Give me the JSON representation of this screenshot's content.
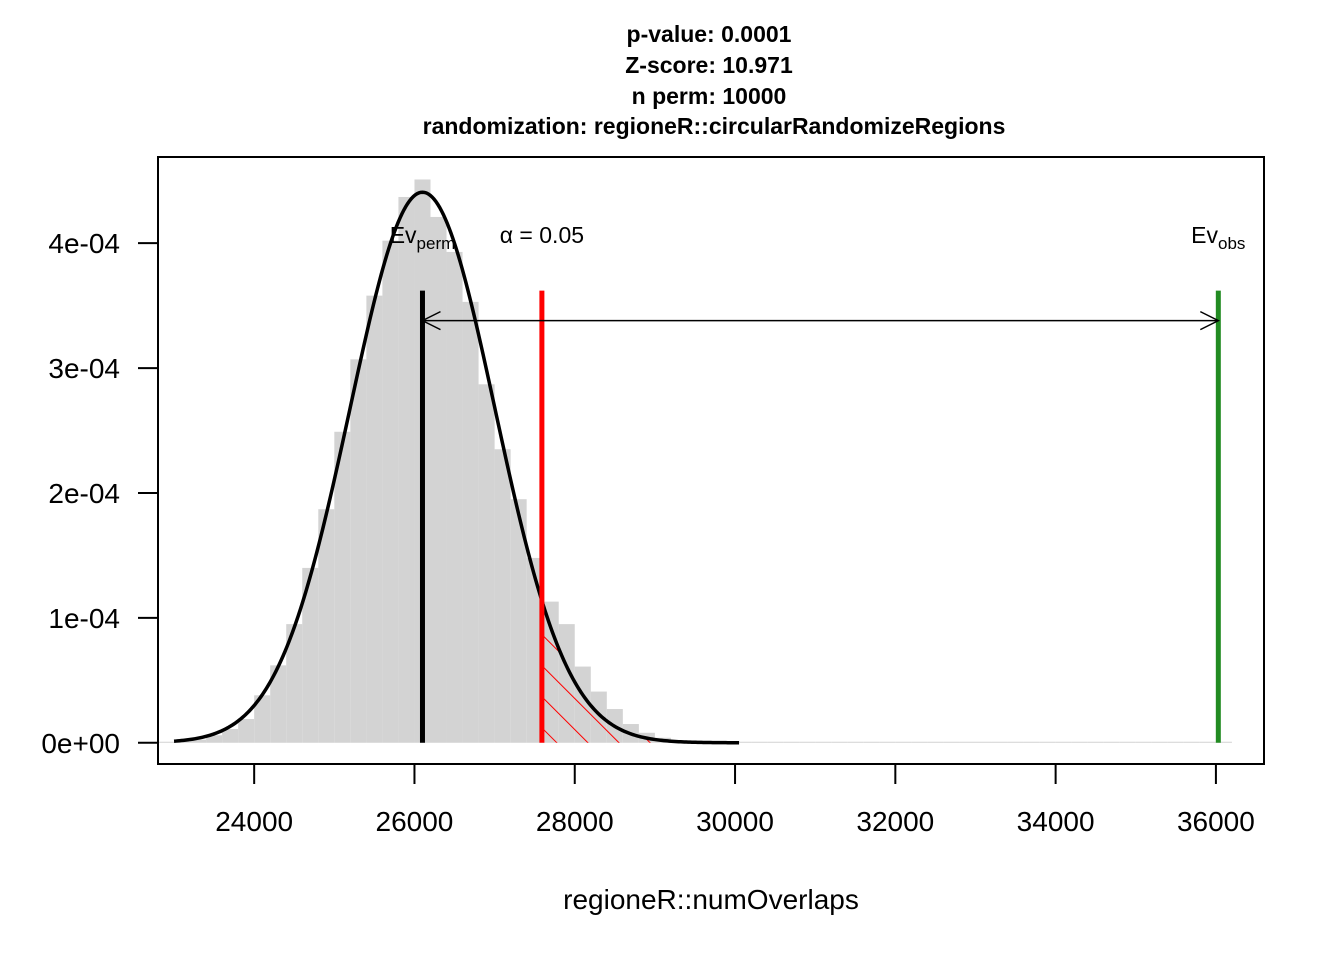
{
  "chart_data": {
    "type": "histogram",
    "title_lines": [
      "p-value:  0.0001",
      "Z-score:  10.971",
      "n perm:  10000",
      "randomization:  regioneR::circularRandomizeRegions"
    ],
    "xlabel": "regioneR::numOverlaps",
    "ylabel": "",
    "xlim": [
      22800,
      36600
    ],
    "ylim": [
      -1.7e-05,
      0.000469
    ],
    "x_ticks": [
      24000,
      26000,
      28000,
      30000,
      32000,
      34000,
      36000
    ],
    "x_tick_labels": [
      "24000",
      "26000",
      "28000",
      "30000",
      "32000",
      "34000",
      "36000"
    ],
    "y_ticks": [
      0,
      0.0001,
      0.0002,
      0.0003,
      0.0004
    ],
    "y_tick_labels": [
      "0e+00",
      "1e-04",
      "2e-04",
      "3e-04",
      "4e-04"
    ],
    "histogram": {
      "color": "#d3d3d3",
      "bin_width": 200,
      "bin_starts": [
        22800,
        23000,
        23200,
        23400,
        23600,
        23800,
        24000,
        24200,
        24400,
        24600,
        24800,
        25000,
        25200,
        25400,
        25600,
        25800,
        26000,
        26200,
        26400,
        26600,
        26800,
        27000,
        27200,
        27400,
        27600,
        27800,
        28000,
        28200,
        28400,
        28600,
        28800,
        29000,
        29200,
        29400,
        29600,
        29800,
        30000,
        30200,
        30400,
        30600,
        30800,
        31000,
        31200,
        31400,
        31600,
        31800,
        32000,
        32200,
        32400,
        32600,
        32800,
        33000,
        33200,
        33400,
        33600,
        33800,
        34000,
        34200,
        34400,
        34600,
        34800,
        35000,
        35200,
        35400,
        35600,
        35800,
        36000
      ],
      "densities": [
        5e-07,
        1e-06,
        2.5e-06,
        6e-06,
        1.1e-05,
        1.9e-05,
        3.8e-05,
        6.2e-05,
        9.5e-05,
        0.00014,
        0.000187,
        0.000249,
        0.000307,
        0.000358,
        0.000402,
        0.000437,
        0.000451,
        0.000421,
        0.000393,
        0.000353,
        0.000287,
        0.000235,
        0.000195,
        0.000148,
        0.000113,
        9.5e-05,
        6.1e-05,
        4.1e-05,
        2.7e-05,
        1.5e-05,
        8e-06,
        4e-06,
        2e-06,
        1e-06,
        5e-07,
        2e-07,
        2e-07,
        2e-07,
        1e-07,
        1e-07,
        1e-07,
        1e-07,
        1e-07,
        1e-07,
        1e-07,
        1e-07,
        1e-07,
        1e-07,
        1e-07,
        1e-07,
        1e-07,
        1e-07,
        1e-07,
        1e-07,
        1e-07,
        1e-07,
        1e-07,
        1e-07,
        1e-07,
        1e-07,
        1e-07,
        1e-07,
        1e-07,
        1e-07,
        1e-07,
        1e-07,
        1e-07
      ]
    },
    "density_curve": {
      "type": "normal",
      "mean": 26100,
      "sd": 905,
      "x_range": [
        23000,
        30050
      ],
      "color": "#000000"
    },
    "lines": [
      {
        "name": "perm_mean",
        "x": 26100,
        "y_range": [
          0,
          0.000362
        ],
        "color": "#000000"
      },
      {
        "name": "alpha",
        "x": 27590,
        "y_range": [
          0,
          0.000362
        ],
        "color": "#ff0000"
      },
      {
        "name": "observed",
        "x": 36030,
        "y_range": [
          0,
          0.000362
        ],
        "color": "#228b22"
      }
    ],
    "arrow": {
      "x_from": 26100,
      "x_to": 36030,
      "y": 0.000338,
      "color": "#000000"
    },
    "shaded_region": {
      "x_from": 27590,
      "x_to": 29200,
      "color": "#ff0000",
      "style": "hatched"
    },
    "annotations": {
      "ev_perm": {
        "main": "Ev",
        "sub": "perm",
        "x": 26100,
        "y": 0.0004
      },
      "alpha": {
        "text": "α = 0.05",
        "x": 27590,
        "y": 0.0004
      },
      "ev_obs": {
        "main": "Ev",
        "sub": "obs",
        "x": 36030,
        "y": 0.0004
      }
    }
  }
}
